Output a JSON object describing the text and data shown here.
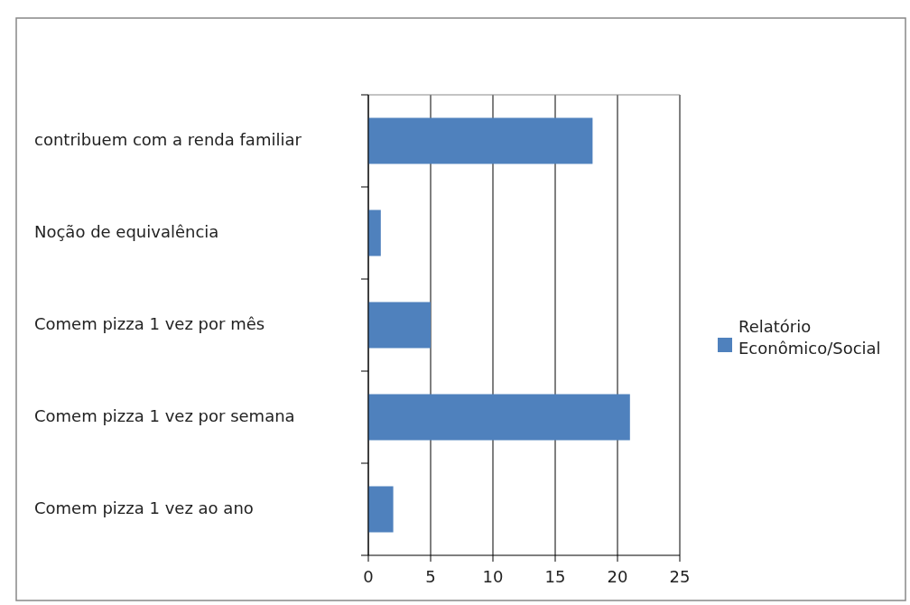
{
  "chart_data": {
    "type": "bar",
    "orientation": "horizontal",
    "categories": [
      "contribuem com a renda familiar",
      "Noção de equivalência",
      "Comem pizza 1 vez por mês",
      "Comem pizza 1 vez por semana",
      "Comem pizza 1 vez ao ano"
    ],
    "series": [
      {
        "name": "Relatório Econômico/Social",
        "color": "#4f81bd",
        "values": [
          18,
          1,
          5,
          21,
          2
        ]
      }
    ],
    "xlim": [
      0,
      25
    ],
    "xticks": [
      0,
      5,
      10,
      15,
      20,
      25
    ],
    "grid": "x",
    "legend": "right"
  }
}
